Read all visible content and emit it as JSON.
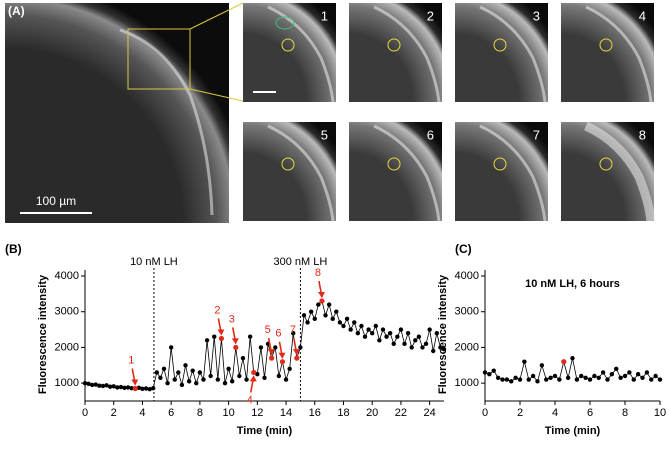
{
  "panel_a": {
    "label": "(A)",
    "scale_bar": "100 µm",
    "frames": [
      "1",
      "2",
      "3",
      "4",
      "5",
      "6",
      "7",
      "8"
    ]
  },
  "chart_data": [
    {
      "type": "line",
      "panel_label": "(B)",
      "xlabel": "Time (min)",
      "ylabel": "Fluorescence intensity",
      "xlim": [
        0,
        25
      ],
      "xticks": [
        0,
        2,
        4,
        6,
        8,
        10,
        12,
        14,
        16,
        18,
        20,
        22,
        24
      ],
      "ylim": [
        500,
        4000
      ],
      "yticks": [
        1000,
        2000,
        3000,
        4000
      ],
      "x": [
        0,
        0.25,
        0.5,
        0.75,
        1,
        1.25,
        1.5,
        1.75,
        2,
        2.25,
        2.5,
        2.75,
        3,
        3.25,
        3.5,
        3.75,
        4,
        4.25,
        4.5,
        4.75,
        5,
        5.25,
        5.5,
        5.75,
        6,
        6.25,
        6.5,
        6.75,
        7,
        7.25,
        7.5,
        7.75,
        8,
        8.25,
        8.5,
        8.75,
        9,
        9.25,
        9.5,
        9.75,
        10,
        10.25,
        10.5,
        10.75,
        11,
        11.25,
        11.5,
        11.75,
        12,
        12.25,
        12.5,
        12.75,
        13,
        13.25,
        13.5,
        13.75,
        14,
        14.25,
        14.5,
        14.75,
        15,
        15.25,
        15.5,
        15.75,
        16,
        16.25,
        16.5,
        16.75,
        17,
        17.25,
        17.5,
        17.75,
        18,
        18.25,
        18.5,
        18.75,
        19,
        19.25,
        19.5,
        19.75,
        20,
        20.25,
        20.5,
        20.75,
        21,
        21.25,
        21.5,
        21.75,
        22,
        22.25,
        22.5,
        22.75,
        23,
        23.25,
        23.5,
        23.75,
        24,
        24.25,
        24.5,
        24.75,
        25
      ],
      "series": [
        {
          "color": "#000000",
          "values": [
            1000,
            980,
            950,
            960,
            930,
            920,
            940,
            900,
            910,
            880,
            890,
            870,
            880,
            860,
            850,
            870,
            840,
            850,
            830,
            860,
            1300,
            1150,
            1400,
            1000,
            2000,
            1100,
            1300,
            950,
            1500,
            1050,
            1350,
            1000,
            1300,
            1100,
            2200,
            1200,
            2300,
            1100,
            2250,
            1000,
            1400,
            1050,
            2000,
            1200,
            1700,
            1100,
            2300,
            1300,
            1250,
            2000,
            1150,
            2100,
            1700,
            2000,
            1200,
            1600,
            1100,
            1400,
            2400,
            1700,
            2000,
            2900,
            2700,
            3000,
            2800,
            3200,
            3300,
            2900,
            3200,
            2800,
            3000,
            2700,
            2600,
            2800,
            2500,
            2700,
            2400,
            2600,
            2300,
            2500,
            2400,
            2600,
            2200,
            2500,
            2300,
            2400,
            2100,
            2300,
            2500,
            2100,
            2400,
            2000,
            2200,
            2300,
            2000,
            2100,
            2500,
            1900,
            2400,
            2000,
            1950
          ]
        }
      ],
      "events": [
        {
          "x": 4.8,
          "label": "10 nM LH"
        },
        {
          "x": 15,
          "label": "300 nM LH"
        }
      ],
      "annotations": [
        {
          "label": "1",
          "x": 3.5,
          "y": 850
        },
        {
          "label": "2",
          "x": 9.5,
          "y": 2250
        },
        {
          "label": "3",
          "x": 10.5,
          "y": 2000
        },
        {
          "label": "4",
          "x": 11.75,
          "y": 1300
        },
        {
          "label": "5",
          "x": 13,
          "y": 1700
        },
        {
          "label": "6",
          "x": 13.75,
          "y": 1600
        },
        {
          "label": "7",
          "x": 14.75,
          "y": 1700
        },
        {
          "label": "8",
          "x": 16.5,
          "y": 3300
        }
      ],
      "annotation_color": "#e02a1a"
    },
    {
      "type": "line",
      "panel_label": "(C)",
      "title": "10 nM LH, 6 hours",
      "xlabel": "Time (min)",
      "ylabel": "Fluorescence intensity",
      "xlim": [
        0,
        10
      ],
      "xticks": [
        0,
        2,
        4,
        6,
        8,
        10
      ],
      "ylim": [
        500,
        4000
      ],
      "yticks": [
        1000,
        2000,
        3000,
        4000
      ],
      "x": [
        0,
        0.25,
        0.5,
        0.75,
        1,
        1.25,
        1.5,
        1.75,
        2,
        2.25,
        2.5,
        2.75,
        3,
        3.25,
        3.5,
        3.75,
        4,
        4.25,
        4.5,
        4.75,
        5,
        5.25,
        5.5,
        5.75,
        6,
        6.25,
        6.5,
        6.75,
        7,
        7.25,
        7.5,
        7.75,
        8,
        8.25,
        8.5,
        8.75,
        9,
        9.25,
        9.5,
        9.75,
        10
      ],
      "series": [
        {
          "color": "#000000",
          "values": [
            1300,
            1250,
            1350,
            1150,
            1100,
            1100,
            1050,
            1150,
            1100,
            1600,
            1100,
            1200,
            1050,
            1500,
            1100,
            1150,
            1200,
            1100,
            1600,
            1150,
            1700,
            1100,
            1200,
            1150,
            1100,
            1200,
            1150,
            1300,
            1100,
            1250,
            1400,
            1150,
            1200,
            1300,
            1100,
            1250,
            1150,
            1300,
            1100,
            1200,
            1100
          ]
        }
      ],
      "annotations": [
        {
          "x": 4.5,
          "y": 1600
        }
      ],
      "annotation_color": "#e02a1a"
    }
  ]
}
